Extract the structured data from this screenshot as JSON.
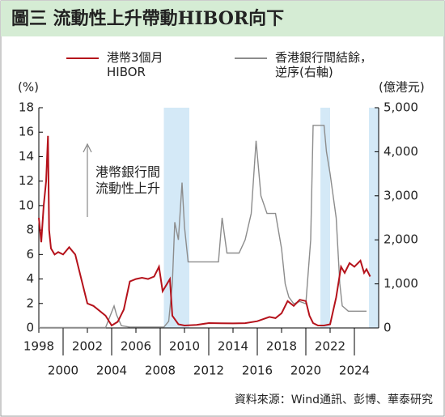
{
  "chart_data": {
    "type": "line",
    "title": "圖三  流動性上升帶動HIBOR向下",
    "y_label": "(%)",
    "y2_label": "(億港元)",
    "annotation": "港幣銀行間\n流動性上升",
    "source": "資料來源：Wind通訊、彭博、華泰研究",
    "xlim": [
      1998,
      2026
    ],
    "xticks": [
      1998,
      2000,
      2002,
      2004,
      2006,
      2008,
      2010,
      2012,
      2014,
      2016,
      2018,
      2020,
      2022,
      2024
    ],
    "ylim": [
      0,
      18
    ],
    "yticks": [
      0,
      2,
      4,
      6,
      8,
      10,
      12,
      14,
      16,
      18
    ],
    "y2lim": [
      0,
      5000
    ],
    "y2ticks": [
      0,
      {
        "value": 1000,
        "label": "1,000"
      },
      {
        "value": 2000,
        "label": "2,000"
      },
      {
        "value": 3000,
        "label": "3,000"
      },
      {
        "value": 4000,
        "label": "4,000"
      },
      {
        "value": 5000,
        "label": "5,000"
      }
    ],
    "shaded_ranges": [
      [
        2008.3,
        2010.4
      ],
      [
        2021.2,
        2022.0
      ],
      [
        2025.2,
        2026
      ]
    ],
    "shade_color": "#d4e9f7",
    "series": [
      {
        "name": "港幣3個月\nHIBOR",
        "color": "#b5121b",
        "x": [
          1998.0,
          1998.2,
          1998.4,
          1998.6,
          1998.75,
          1998.85,
          1999.0,
          1999.3,
          1999.6,
          2000.0,
          2000.5,
          2001.0,
          2001.5,
          2002.0,
          2002.5,
          2003.0,
          2003.5,
          2004.0,
          2004.5,
          2005.0,
          2005.5,
          2006.0,
          2006.5,
          2007.0,
          2007.5,
          2007.9,
          2008.2,
          2008.5,
          2008.8,
          2009.0,
          2009.5,
          2010.0,
          2011.0,
          2012.0,
          2013.0,
          2014.0,
          2015.0,
          2016.0,
          2017.0,
          2017.5,
          2018.0,
          2018.5,
          2019.0,
          2019.5,
          2020.0,
          2020.3,
          2020.6,
          2021.0,
          2021.5,
          2022.0,
          2022.5,
          2022.9,
          2023.2,
          2023.6,
          2024.0,
          2024.5,
          2024.8,
          2025.0,
          2025.3
        ],
        "values": [
          9,
          7,
          10,
          12,
          15.7,
          8,
          6.5,
          6,
          6.2,
          6.0,
          6.6,
          6.0,
          4.0,
          2.0,
          1.8,
          1.4,
          1.0,
          0.2,
          0.5,
          1.5,
          3.8,
          4.0,
          4.1,
          4.0,
          4.2,
          5.0,
          3.0,
          3.5,
          4.0,
          1.0,
          0.3,
          0.2,
          0.25,
          0.4,
          0.38,
          0.37,
          0.39,
          0.55,
          0.9,
          0.8,
          1.2,
          2.2,
          1.8,
          2.3,
          2.2,
          1.0,
          0.4,
          0.2,
          0.2,
          0.3,
          2.5,
          5.0,
          4.5,
          5.3,
          5.0,
          5.5,
          4.5,
          4.8,
          4.2
        ]
      },
      {
        "name": "香港銀行間結餘，\n逆序(右軸)",
        "color": "#8c8c8c",
        "axis": "y2",
        "x": [
          1998.0,
          2003.5,
          2004.2,
          2004.4,
          2004.8,
          2005.5,
          2008.3,
          2008.7,
          2009.0,
          2009.2,
          2009.5,
          2009.8,
          2010.0,
          2010.3,
          2012.8,
          2013.1,
          2013.5,
          2014.5,
          2015.0,
          2015.5,
          2015.9,
          2016.3,
          2016.8,
          2017.5,
          2018.0,
          2018.3,
          2018.6,
          2019.0,
          2019.5,
          2020.0,
          2020.4,
          2020.6,
          2021.5,
          2021.7,
          2022.0,
          2022.5,
          2022.8,
          2023.0,
          2023.5,
          2024.0,
          2025.0
        ],
        "values": [
          10,
          10,
          500,
          300,
          50,
          20,
          20,
          150,
          1000,
          2400,
          2000,
          3300,
          2300,
          1500,
          1500,
          2500,
          1700,
          1700,
          2000,
          2600,
          4250,
          3000,
          2600,
          2600,
          1800,
          1000,
          700,
          550,
          600,
          550,
          2000,
          4600,
          4600,
          4000,
          3500,
          2500,
          1000,
          500,
          380,
          380,
          380
        ]
      }
    ]
  }
}
